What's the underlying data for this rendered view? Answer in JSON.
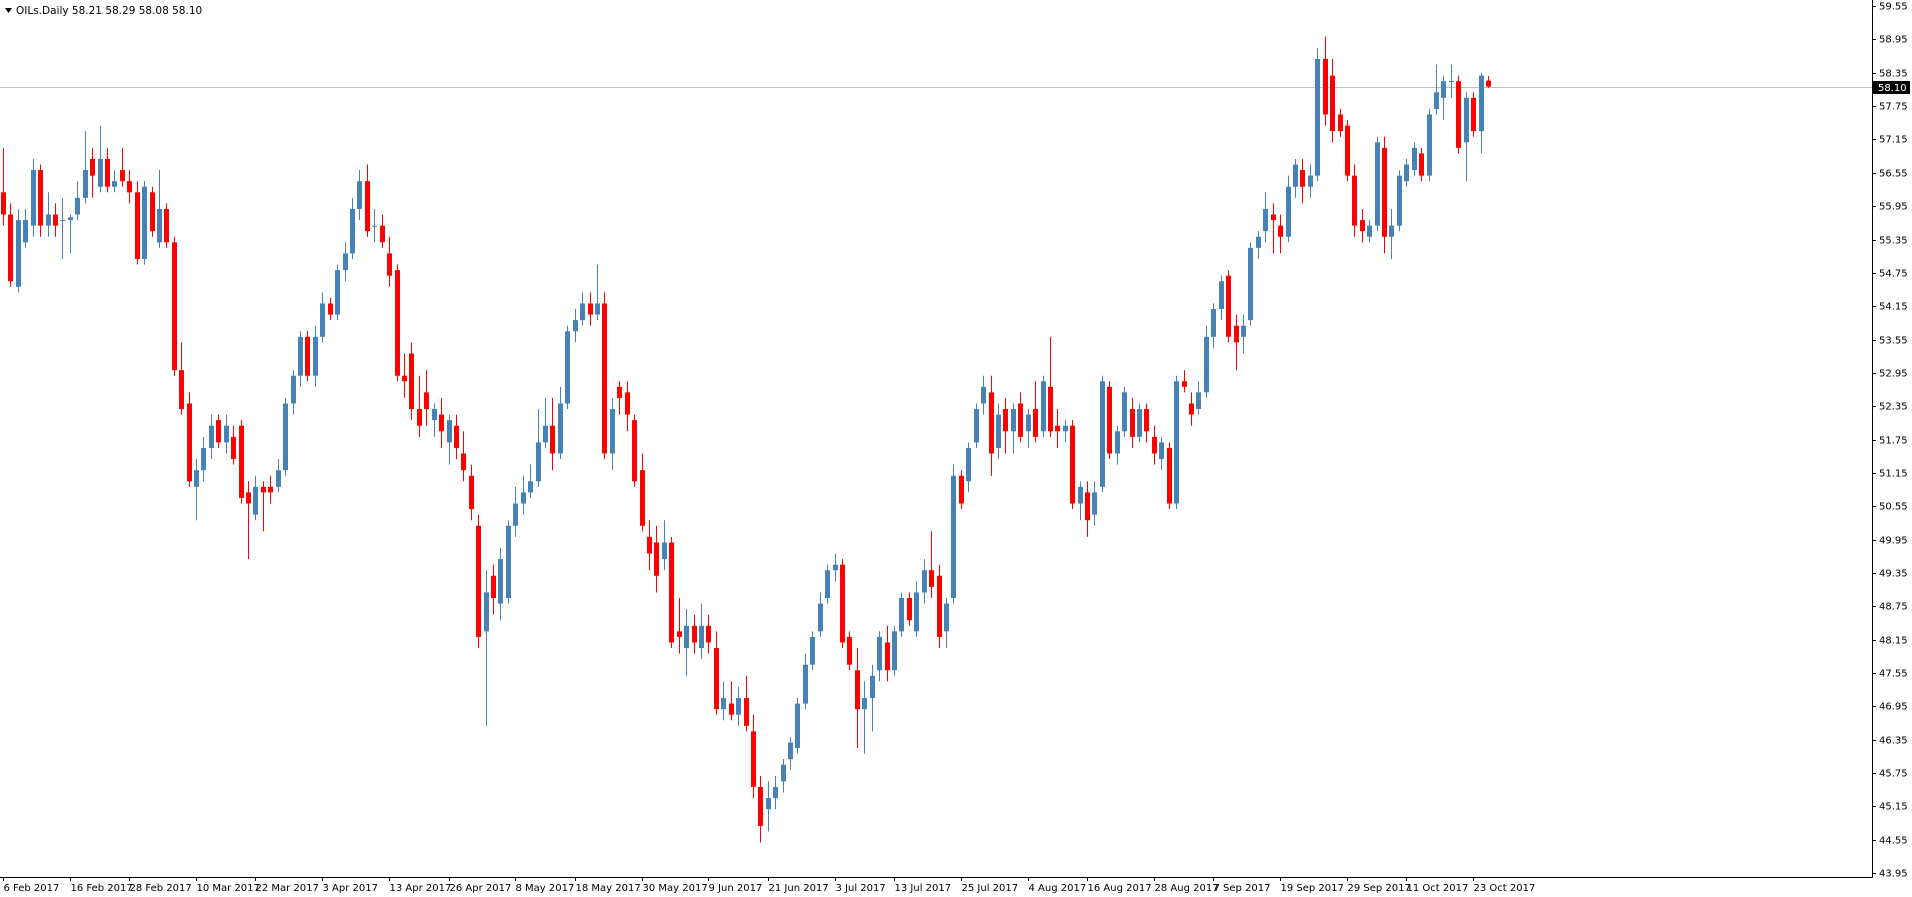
{
  "chart_data": {
    "type": "candlestick",
    "title": "OILs.Daily  58.21 58.29 58.08 58.10",
    "up_color": "#4682b4",
    "down_color": "#ff0000",
    "ylim": [
      43.88,
      59.66
    ],
    "yticks": [
      59.55,
      58.95,
      58.35,
      57.75,
      57.15,
      56.55,
      55.95,
      55.35,
      54.75,
      54.15,
      53.55,
      52.95,
      52.35,
      51.75,
      51.15,
      50.55,
      49.95,
      49.35,
      48.75,
      48.15,
      47.55,
      46.95,
      46.35,
      45.75,
      45.15,
      44.55,
      43.95
    ],
    "last_price": {
      "value": 58.1,
      "label": "58.10"
    },
    "categories": [
      "6 Feb 2017",
      null,
      null,
      null,
      null,
      null,
      null,
      null,
      null,
      "16 Feb 2017",
      null,
      null,
      null,
      null,
      null,
      null,
      null,
      "28 Feb 2017",
      null,
      null,
      null,
      null,
      null,
      null,
      null,
      null,
      "10 Mar 2017",
      null,
      null,
      null,
      null,
      null,
      null,
      null,
      "22 Mar 2017",
      null,
      null,
      null,
      null,
      null,
      null,
      null,
      null,
      "3 Apr 2017",
      null,
      null,
      null,
      null,
      null,
      null,
      null,
      null,
      "13 Apr 2017",
      null,
      null,
      null,
      null,
      null,
      null,
      null,
      "26 Apr 2017",
      null,
      null,
      null,
      null,
      null,
      null,
      null,
      null,
      "8 May 2017",
      null,
      null,
      null,
      null,
      null,
      null,
      null,
      "18 May 2017",
      null,
      null,
      null,
      null,
      null,
      null,
      null,
      null,
      "30 May 2017",
      null,
      null,
      null,
      null,
      null,
      null,
      null,
      null,
      "9 Jun 2017",
      null,
      null,
      null,
      null,
      null,
      null,
      null,
      "21 Jun 2017",
      null,
      null,
      null,
      null,
      null,
      null,
      null,
      null,
      "3 Jul 2017",
      null,
      null,
      null,
      null,
      null,
      null,
      null,
      "13 Jul 2017",
      null,
      null,
      null,
      null,
      null,
      null,
      null,
      null,
      "25 Jul 2017",
      null,
      null,
      null,
      null,
      null,
      null,
      null,
      null,
      "4 Aug 2017",
      null,
      null,
      null,
      null,
      null,
      null,
      null,
      "16 Aug 2017",
      null,
      null,
      null,
      null,
      null,
      null,
      null,
      null,
      "28 Aug 2017",
      null,
      null,
      null,
      null,
      null,
      null,
      null,
      "7 Sep 2017",
      null,
      null,
      null,
      null,
      null,
      null,
      null,
      null,
      "19 Sep 2017",
      null,
      null,
      null,
      null,
      null,
      null,
      null,
      null,
      "29 Sep 2017",
      null,
      null,
      null,
      null,
      null,
      null,
      null,
      "11 Oct 2017",
      null,
      null,
      null,
      null,
      null,
      null,
      null,
      null,
      "23 Oct 2017",
      null,
      null
    ],
    "open": [
      56.2,
      55.8,
      54.5,
      55.3,
      55.6,
      56.6,
      55.6,
      55.8,
      55.7,
      55.7,
      55.8,
      56.1,
      56.8,
      56.3,
      56.8,
      56.3,
      56.6,
      56.4,
      56.2,
      55.0,
      56.2,
      55.3,
      55.9,
      55.3,
      53.0,
      52.4,
      50.9,
      51.2,
      51.6,
      52.1,
      51.7,
      51.8,
      52.0,
      50.8,
      50.4,
      50.9,
      50.9,
      50.9,
      51.2,
      52.4,
      52.9,
      53.6,
      52.9,
      53.6,
      54.2,
      54.0,
      54.8,
      55.1,
      55.9,
      56.4,
      55.6,
      55.6,
      55.1,
      54.8,
      52.9,
      53.3,
      52.3,
      52.6,
      52.1,
      52.2,
      51.7,
      52.0,
      51.5,
      51.1,
      50.2,
      48.3,
      49.3,
      48.8,
      48.9,
      50.2,
      50.6,
      50.8,
      51.0,
      51.7,
      52.0,
      51.5,
      52.4,
      53.7,
      53.9,
      54.2,
      54.0,
      54.2,
      51.5,
      52.7,
      52.6,
      52.1,
      51.2,
      50.0,
      49.9,
      49.6,
      49.9,
      48.3,
      48.0,
      48.4,
      48.0,
      48.4,
      48.0,
      46.9,
      47.0,
      46.8,
      47.1,
      46.5,
      45.5,
      45.1,
      45.3,
      45.6,
      46.0,
      46.2,
      47.0,
      47.7,
      48.3,
      48.9,
      49.4,
      49.5,
      48.2,
      47.6,
      46.9,
      47.1,
      47.6,
      48.1,
      47.6,
      48.3,
      48.9,
      48.3,
      49.0,
      49.4,
      49.3,
      48.3,
      48.9,
      51.1,
      51.0,
      51.7,
      52.4,
      52.6,
      51.6,
      52.3,
      51.9,
      52.4,
      51.9,
      52.3,
      51.9,
      52.7,
      52.0,
      51.9,
      52.0,
      50.6,
      50.8,
      50.4,
      50.9,
      52.7,
      51.5,
      51.9,
      52.3,
      51.8,
      52.3,
      51.8,
      51.4,
      51.6,
      50.6,
      52.8,
      52.4,
      52.3,
      52.6,
      53.6,
      54.1,
      54.7,
      53.8,
      53.6,
      53.9,
      55.2,
      55.5,
      55.8,
      55.6,
      55.4,
      56.3,
      56.6,
      56.3,
      56.5,
      58.6,
      58.3,
      57.6,
      57.4,
      56.5,
      55.7,
      55.4,
      55.6,
      57.0,
      55.4,
      55.6,
      56.4,
      56.6,
      56.9,
      56.5,
      57.7,
      57.9,
      58.2,
      58.2,
      57.1,
      57.9,
      57.3,
      58.21
    ],
    "high": [
      57.0,
      56.0,
      55.9,
      55.9,
      56.8,
      56.7,
      56.2,
      56.0,
      56.1,
      55.8,
      56.4,
      57.3,
      57.0,
      57.4,
      57.0,
      56.6,
      57.0,
      56.6,
      56.4,
      56.4,
      56.3,
      56.6,
      56.0,
      55.4,
      53.5,
      52.6,
      51.4,
      51.8,
      52.2,
      52.2,
      52.2,
      52.0,
      52.1,
      51.0,
      51.1,
      51.0,
      51.1,
      51.4,
      52.5,
      53.0,
      53.7,
      53.7,
      53.8,
      54.4,
      54.3,
      54.9,
      55.3,
      56.1,
      56.6,
      56.7,
      55.9,
      55.8,
      55.4,
      54.9,
      53.3,
      53.5,
      52.9,
      53.0,
      52.4,
      52.5,
      52.2,
      52.2,
      51.9,
      51.3,
      50.4,
      49.4,
      49.5,
      49.8,
      50.3,
      50.9,
      51.1,
      51.3,
      52.3,
      52.5,
      52.5,
      52.7,
      53.8,
      54.1,
      54.4,
      54.4,
      54.9,
      54.4,
      52.5,
      52.8,
      52.8,
      52.2,
      51.5,
      50.3,
      50.2,
      50.3,
      50.0,
      48.9,
      48.7,
      48.6,
      48.8,
      48.6,
      48.3,
      47.4,
      47.4,
      47.3,
      47.5,
      46.8,
      45.7,
      45.6,
      45.7,
      46.0,
      46.4,
      47.1,
      47.9,
      48.3,
      49.0,
      49.5,
      49.7,
      49.6,
      48.3,
      48.0,
      47.4,
      47.7,
      48.3,
      48.4,
      48.4,
      49.0,
      49.0,
      49.2,
      49.6,
      50.1,
      49.5,
      48.9,
      51.3,
      51.2,
      51.7,
      52.4,
      52.9,
      52.9,
      52.4,
      52.5,
      52.4,
      52.6,
      52.3,
      52.8,
      52.9,
      53.6,
      52.3,
      52.1,
      52.1,
      51.0,
      51.0,
      51.0,
      52.9,
      52.8,
      52.0,
      52.7,
      52.5,
      52.4,
      52.4,
      52.0,
      51.8,
      51.7,
      52.9,
      53.0,
      52.6,
      52.8,
      53.8,
      54.2,
      54.7,
      54.8,
      54.0,
      54.0,
      55.3,
      55.5,
      56.2,
      56.0,
      55.8,
      56.5,
      56.8,
      56.8,
      56.7,
      58.8,
      59.0,
      58.6,
      57.7,
      57.5,
      56.7,
      55.9,
      55.7,
      57.2,
      57.2,
      55.9,
      56.6,
      56.8,
      57.1,
      57.0,
      57.7,
      58.5,
      58.3,
      58.5,
      58.3,
      58.0,
      58.0,
      58.35,
      58.29
    ],
    "low": [
      55.6,
      54.5,
      54.4,
      55.2,
      55.4,
      55.4,
      55.4,
      55.4,
      55.0,
      55.1,
      55.7,
      56.0,
      56.1,
      56.2,
      56.2,
      56.2,
      56.3,
      56.0,
      54.9,
      54.9,
      55.4,
      55.2,
      55.2,
      52.9,
      52.2,
      50.9,
      50.3,
      51.0,
      51.4,
      51.6,
      51.5,
      51.3,
      50.6,
      49.6,
      50.3,
      50.1,
      50.6,
      50.8,
      51.1,
      52.2,
      52.7,
      52.8,
      52.7,
      53.5,
      53.9,
      53.9,
      54.6,
      55.0,
      55.7,
      55.4,
      55.3,
      55.2,
      54.5,
      52.8,
      52.5,
      52.1,
      51.8,
      52.0,
      51.8,
      51.6,
      51.3,
      51.4,
      51.0,
      50.3,
      48.0,
      46.6,
      48.6,
      48.5,
      48.8,
      50.0,
      50.4,
      50.7,
      50.9,
      51.6,
      51.2,
      51.4,
      52.3,
      53.5,
      53.8,
      53.8,
      53.9,
      51.4,
      51.2,
      52.2,
      51.9,
      50.9,
      50.1,
      49.4,
      49.0,
      49.4,
      48.0,
      47.9,
      47.5,
      47.9,
      47.8,
      47.9,
      46.8,
      46.7,
      46.7,
      46.6,
      46.5,
      45.3,
      44.5,
      44.7,
      45.1,
      45.4,
      45.8,
      46.1,
      46.9,
      47.6,
      48.2,
      48.8,
      49.2,
      48.0,
      47.6,
      46.2,
      46.1,
      46.5,
      47.4,
      47.4,
      47.5,
      48.2,
      48.4,
      48.2,
      48.8,
      48.9,
      48.0,
      48.0,
      48.8,
      50.5,
      50.8,
      51.6,
      52.2,
      51.1,
      51.4,
      51.5,
      51.5,
      51.7,
      51.6,
      51.7,
      51.8,
      51.8,
      51.6,
      51.7,
      50.5,
      50.3,
      50.0,
      50.2,
      50.8,
      51.4,
      51.3,
      51.8,
      51.6,
      51.7,
      51.7,
      51.3,
      51.2,
      50.5,
      50.5,
      52.6,
      52.0,
      52.2,
      52.5,
      53.4,
      53.9,
      53.5,
      53.0,
      53.3,
      53.8,
      55.0,
      55.3,
      55.1,
      55.1,
      55.3,
      56.1,
      56.0,
      56.1,
      56.4,
      57.4,
      57.1,
      57.2,
      56.4,
      55.4,
      55.3,
      55.3,
      55.5,
      55.1,
      55.0,
      55.5,
      56.3,
      56.5,
      56.4,
      56.4,
      57.6,
      57.5,
      57.9,
      56.9,
      56.4,
      57.2,
      56.9,
      58.08
    ],
    "close": [
      55.8,
      54.6,
      55.7,
      55.7,
      56.6,
      55.6,
      55.8,
      55.6,
      55.7,
      55.75,
      56.1,
      56.6,
      56.5,
      56.8,
      56.3,
      56.4,
      56.4,
      56.2,
      55.0,
      56.3,
      55.5,
      55.9,
      55.3,
      53.0,
      52.3,
      51.0,
      51.2,
      51.6,
      52.0,
      51.7,
      52.0,
      51.4,
      50.7,
      50.6,
      50.9,
      50.8,
      50.8,
      51.2,
      52.4,
      52.9,
      53.6,
      52.9,
      53.6,
      54.2,
      54.0,
      54.8,
      55.1,
      55.9,
      56.4,
      55.5,
      55.6,
      55.3,
      54.7,
      52.9,
      52.8,
      52.3,
      52.0,
      52.3,
      52.3,
      51.9,
      52.1,
      51.6,
      51.2,
      50.5,
      48.2,
      49.0,
      48.9,
      49.6,
      50.2,
      50.6,
      50.8,
      51.0,
      51.7,
      52.0,
      51.5,
      52.4,
      53.7,
      53.9,
      54.2,
      54.0,
      54.2,
      51.5,
      52.3,
      52.5,
      52.2,
      51.0,
      50.2,
      49.7,
      49.3,
      49.9,
      48.1,
      48.2,
      48.4,
      48.1,
      48.4,
      48.1,
      46.9,
      47.1,
      46.8,
      47.1,
      46.6,
      45.5,
      44.8,
      45.3,
      45.5,
      45.9,
      46.3,
      47.0,
      47.7,
      48.2,
      48.8,
      49.4,
      49.5,
      48.1,
      47.7,
      46.9,
      47.1,
      47.5,
      48.2,
      47.6,
      48.3,
      48.9,
      48.5,
      49.0,
      49.4,
      49.1,
      48.2,
      48.8,
      51.1,
      50.6,
      51.6,
      52.3,
      52.7,
      51.5,
      52.2,
      51.9,
      52.3,
      51.8,
      52.2,
      51.8,
      52.8,
      51.9,
      51.9,
      52.0,
      50.6,
      50.9,
      50.3,
      50.8,
      52.8,
      51.5,
      51.9,
      52.6,
      51.8,
      52.3,
      51.9,
      51.5,
      51.7,
      50.6,
      52.8,
      52.7,
      52.2,
      52.6,
      53.6,
      54.1,
      54.6,
      53.6,
      53.5,
      53.8,
      55.2,
      55.4,
      55.9,
      55.7,
      55.4,
      56.3,
      56.7,
      56.3,
      56.5,
      58.6,
      57.6,
      57.3,
      57.3,
      56.5,
      55.6,
      55.5,
      55.6,
      57.1,
      55.4,
      55.6,
      56.5,
      56.7,
      57.0,
      56.5,
      57.6,
      58.0,
      58.2,
      58.2,
      57.0,
      57.9,
      57.3,
      58.3,
      58.1
    ]
  }
}
